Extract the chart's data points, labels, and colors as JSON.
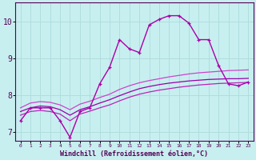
{
  "xlabel": "Windchill (Refroidissement éolien,°C)",
  "bg_color": "#c8eff0",
  "grid_color": "#b0dddd",
  "line_main_color": "#aa00aa",
  "line_smooth_colors": [
    "#9900aa",
    "#cc44cc",
    "#bb22bb"
  ],
  "xlim": [
    -0.5,
    23.5
  ],
  "ylim": [
    6.75,
    10.5
  ],
  "xticks": [
    0,
    1,
    2,
    3,
    4,
    5,
    6,
    7,
    8,
    9,
    10,
    11,
    12,
    13,
    14,
    15,
    16,
    17,
    18,
    19,
    20,
    21,
    22,
    23
  ],
  "yticks": [
    7,
    8,
    9,
    10
  ],
  "line_main_x": [
    0,
    1,
    2,
    3,
    4,
    5,
    6,
    7,
    8,
    9,
    10,
    11,
    12,
    13,
    14,
    15,
    16,
    17,
    18,
    19,
    20,
    21,
    22,
    23
  ],
  "line_main_y": [
    7.3,
    7.65,
    7.65,
    7.65,
    7.3,
    6.85,
    7.55,
    7.65,
    8.3,
    8.75,
    9.5,
    9.25,
    9.15,
    9.9,
    10.05,
    10.15,
    10.15,
    9.95,
    9.5,
    9.5,
    8.8,
    8.3,
    8.25,
    8.35
  ],
  "line_s1_x": [
    0,
    1,
    2,
    3,
    4,
    5,
    6,
    7,
    8,
    9,
    10,
    11,
    12,
    13,
    14,
    15,
    16,
    17,
    18,
    19,
    20,
    21,
    22,
    23
  ],
  "line_s1_y": [
    7.55,
    7.65,
    7.7,
    7.68,
    7.6,
    7.45,
    7.6,
    7.68,
    7.78,
    7.87,
    7.98,
    8.08,
    8.17,
    8.23,
    8.28,
    8.32,
    8.35,
    8.38,
    8.4,
    8.42,
    8.43,
    8.44,
    8.44,
    8.45
  ],
  "line_s2_x": [
    0,
    1,
    2,
    3,
    4,
    5,
    6,
    7,
    8,
    9,
    10,
    11,
    12,
    13,
    14,
    15,
    16,
    17,
    18,
    19,
    20,
    21,
    22,
    23
  ],
  "line_s2_y": [
    7.65,
    7.78,
    7.82,
    7.8,
    7.73,
    7.6,
    7.75,
    7.83,
    7.93,
    8.02,
    8.15,
    8.25,
    8.33,
    8.39,
    8.44,
    8.49,
    8.53,
    8.57,
    8.6,
    8.62,
    8.64,
    8.66,
    8.67,
    8.68
  ],
  "line_s3_x": [
    0,
    1,
    2,
    3,
    4,
    5,
    6,
    7,
    8,
    9,
    10,
    11,
    12,
    13,
    14,
    15,
    16,
    17,
    18,
    19,
    20,
    21,
    22,
    23
  ],
  "line_s3_y": [
    7.45,
    7.55,
    7.58,
    7.55,
    7.48,
    7.3,
    7.48,
    7.56,
    7.65,
    7.73,
    7.84,
    7.94,
    8.02,
    8.08,
    8.13,
    8.17,
    8.21,
    8.24,
    8.27,
    8.29,
    8.31,
    8.32,
    8.33,
    8.34
  ]
}
